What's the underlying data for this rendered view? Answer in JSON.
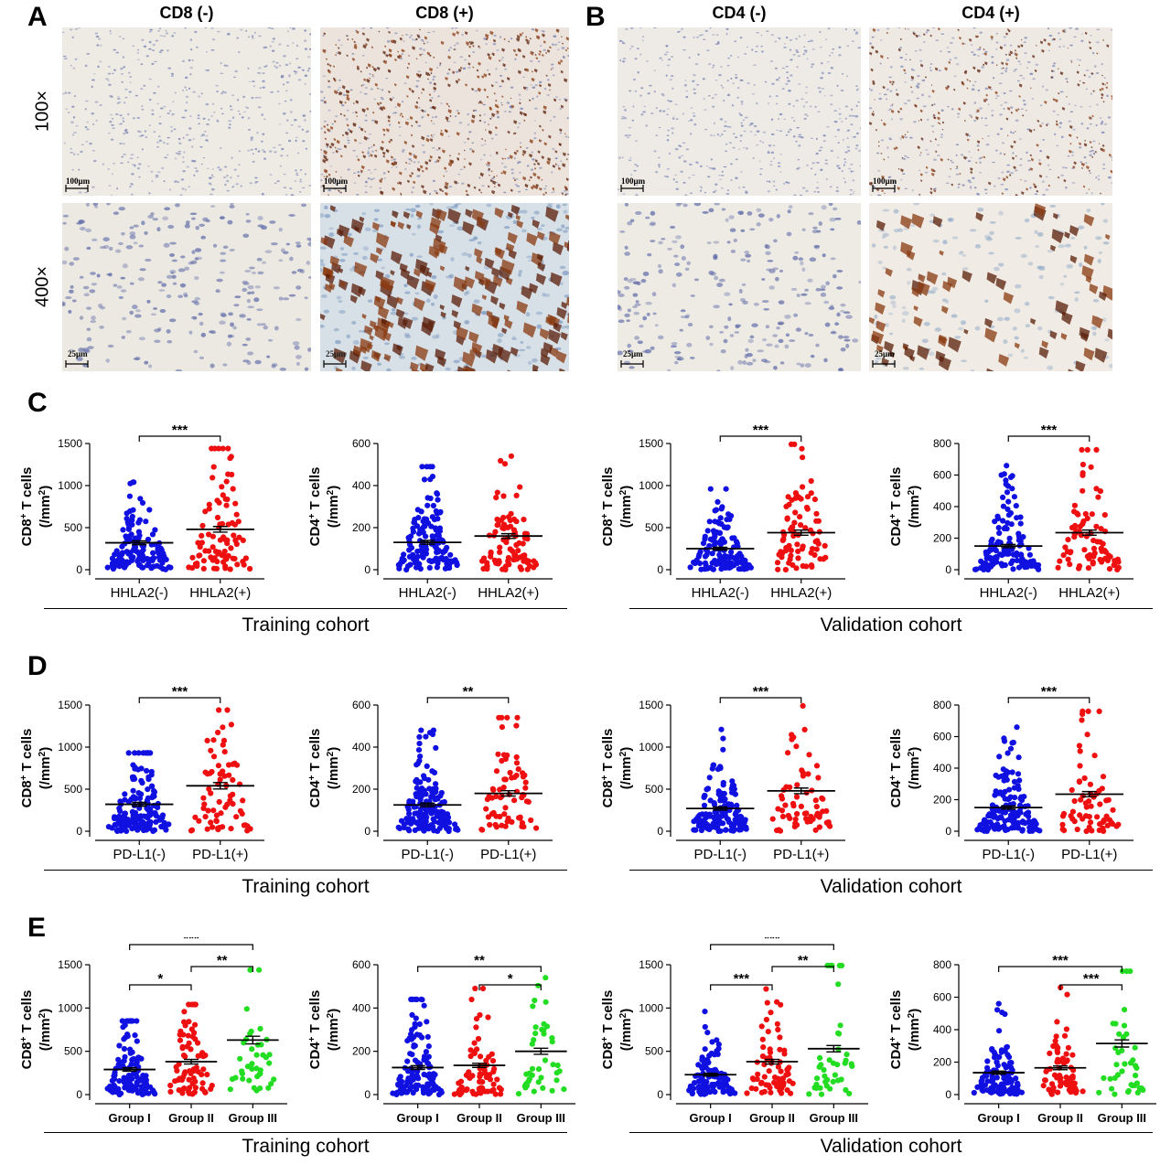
{
  "panels": {
    "A": "A",
    "B": "B",
    "C": "C",
    "D": "D",
    "E": "E"
  },
  "micrographs": {
    "col_headers": [
      "CD8 (-)",
      "CD8 (+)",
      "CD4 (-)",
      "CD4 (+)"
    ],
    "row_labels": [
      "100×",
      "400×"
    ],
    "scalebars": {
      "low": "100μm",
      "high": "25μm"
    }
  },
  "cohorts": {
    "training": "Training cohort",
    "validation": "Validation cohort"
  },
  "colors": {
    "blue": "#1010e0",
    "red": "#ee1010",
    "green": "#22dd22"
  },
  "chart_data": [
    {
      "id": "C1",
      "type": "scatter",
      "ylabel": "CD8+ T cells (/mm2)",
      "ylim": [
        0,
        1500
      ],
      "yticks": [
        0,
        500,
        1000,
        1500
      ],
      "categories": [
        "HHLA2(-)",
        "HHLA2(+)"
      ],
      "colors": [
        "blue",
        "red"
      ],
      "means": [
        320,
        480
      ],
      "n": [
        140,
        90
      ],
      "max": [
        1040,
        1440
      ],
      "sig": [
        {
          "from": 0,
          "to": 1,
          "label": "***",
          "level": 0
        }
      ]
    },
    {
      "id": "C2",
      "type": "scatter",
      "ylabel": "CD4+ T cells (/mm2)",
      "ylim": [
        0,
        600
      ],
      "yticks": [
        0,
        200,
        400,
        600
      ],
      "categories": [
        "HHLA2(-)",
        "HHLA2(+)"
      ],
      "colors": [
        "blue",
        "red"
      ],
      "means": [
        130,
        160
      ],
      "n": [
        140,
        90
      ],
      "max": [
        490,
        540
      ],
      "sig": []
    },
    {
      "id": "C3",
      "type": "scatter",
      "ylabel": "CD8+ T cells (/mm2)",
      "ylim": [
        0,
        1500
      ],
      "yticks": [
        0,
        500,
        1000,
        1500
      ],
      "categories": [
        "HHLA2(-)",
        "HHLA2(+)"
      ],
      "colors": [
        "blue",
        "red"
      ],
      "means": [
        250,
        440
      ],
      "n": [
        130,
        80
      ],
      "max": [
        960,
        1490
      ],
      "sig": [
        {
          "from": 0,
          "to": 1,
          "label": "***",
          "level": 0
        }
      ]
    },
    {
      "id": "C4",
      "type": "scatter",
      "ylabel": "CD4+ T cells (/mm2)",
      "ylim": [
        0,
        800
      ],
      "yticks": [
        0,
        200,
        400,
        600,
        800
      ],
      "categories": [
        "HHLA2(-)",
        "HHLA2(+)"
      ],
      "colors": [
        "blue",
        "red"
      ],
      "means": [
        150,
        235
      ],
      "n": [
        130,
        80
      ],
      "max": [
        660,
        760
      ],
      "sig": [
        {
          "from": 0,
          "to": 1,
          "label": "***",
          "level": 0
        }
      ]
    },
    {
      "id": "D1",
      "type": "scatter",
      "ylabel": "CD8+ T cells (/mm2)",
      "ylim": [
        0,
        1500
      ],
      "yticks": [
        0,
        500,
        1000,
        1500
      ],
      "categories": [
        "PD-L1(-)",
        "PD-L1(+)"
      ],
      "colors": [
        "blue",
        "red"
      ],
      "means": [
        320,
        540
      ],
      "n": [
        160,
        70
      ],
      "max": [
        930,
        1440
      ],
      "sig": [
        {
          "from": 0,
          "to": 1,
          "label": "***",
          "level": 0
        }
      ]
    },
    {
      "id": "D2",
      "type": "scatter",
      "ylabel": "CD4+ T cells (/mm2)",
      "ylim": [
        0,
        600
      ],
      "yticks": [
        0,
        200,
        400,
        600
      ],
      "categories": [
        "PD-L1(-)",
        "PD-L1(+)"
      ],
      "colors": [
        "blue",
        "red"
      ],
      "means": [
        125,
        180
      ],
      "n": [
        160,
        70
      ],
      "max": [
        480,
        540
      ],
      "sig": [
        {
          "from": 0,
          "to": 1,
          "label": "**",
          "level": 0
        }
      ]
    },
    {
      "id": "D3",
      "type": "scatter",
      "ylabel": "CD8+ T cells (/mm2)",
      "ylim": [
        0,
        1500
      ],
      "yticks": [
        0,
        500,
        1000,
        1500
      ],
      "categories": [
        "PD-L1(-)",
        "PD-L1(+)"
      ],
      "colors": [
        "blue",
        "red"
      ],
      "means": [
        270,
        480
      ],
      "n": [
        150,
        65
      ],
      "max": [
        1210,
        1490
      ],
      "sig": [
        {
          "from": 0,
          "to": 1,
          "label": "***",
          "level": 0
        }
      ]
    },
    {
      "id": "D4",
      "type": "scatter",
      "ylabel": "CD4+ T cells (/mm2)",
      "ylim": [
        0,
        800
      ],
      "yticks": [
        0,
        200,
        400,
        600,
        800
      ],
      "categories": [
        "PD-L1(-)",
        "PD-L1(+)"
      ],
      "colors": [
        "blue",
        "red"
      ],
      "means": [
        150,
        235
      ],
      "n": [
        150,
        65
      ],
      "max": [
        660,
        760
      ],
      "sig": [
        {
          "from": 0,
          "to": 1,
          "label": "***",
          "level": 0
        }
      ]
    },
    {
      "id": "E1",
      "type": "scatter",
      "ylabel": "CD8+ T cells (/mm2)",
      "ylim": [
        0,
        1500
      ],
      "yticks": [
        0,
        500,
        1000,
        1500
      ],
      "categories": [
        "Group I",
        "Group II",
        "Group III"
      ],
      "colors": [
        "blue",
        "red",
        "green"
      ],
      "means": [
        290,
        380,
        630
      ],
      "n": [
        120,
        75,
        40
      ],
      "max": [
        850,
        1040,
        1440
      ],
      "sig": [
        {
          "from": 0,
          "to": 1,
          "label": "*",
          "level": 0
        },
        {
          "from": 1,
          "to": 2,
          "label": "**",
          "level": 1
        },
        {
          "from": 0,
          "to": 2,
          "label": "***",
          "level": 2
        }
      ]
    },
    {
      "id": "E2",
      "type": "scatter",
      "ylabel": "CD4+ T cells (/mm2)",
      "ylim": [
        0,
        600
      ],
      "yticks": [
        0,
        200,
        400,
        600
      ],
      "categories": [
        "Group I",
        "Group II",
        "Group III"
      ],
      "colors": [
        "blue",
        "red",
        "green"
      ],
      "means": [
        125,
        135,
        200
      ],
      "n": [
        120,
        75,
        40
      ],
      "max": [
        440,
        490,
        540
      ],
      "sig": [
        {
          "from": 1,
          "to": 2,
          "label": "*",
          "level": 0
        },
        {
          "from": 0,
          "to": 2,
          "label": "**",
          "level": 1
        }
      ]
    },
    {
      "id": "E3",
      "type": "scatter",
      "ylabel": "CD8+ T cells (/mm2)",
      "ylim": [
        0,
        1500
      ],
      "yticks": [
        0,
        500,
        1000,
        1500
      ],
      "categories": [
        "Group I",
        "Group II",
        "Group III"
      ],
      "colors": [
        "blue",
        "red",
        "green"
      ],
      "means": [
        230,
        380,
        530
      ],
      "n": [
        110,
        70,
        40
      ],
      "max": [
        960,
        1220,
        1490
      ],
      "sig": [
        {
          "from": 0,
          "to": 1,
          "label": "***",
          "level": 0
        },
        {
          "from": 1,
          "to": 2,
          "label": "**",
          "level": 1
        },
        {
          "from": 0,
          "to": 2,
          "label": "***",
          "level": 2
        }
      ]
    },
    {
      "id": "E4",
      "type": "scatter",
      "ylabel": "CD4+ T cells (/mm2)",
      "ylim": [
        0,
        800
      ],
      "yticks": [
        0,
        200,
        400,
        600,
        800
      ],
      "categories": [
        "Group I",
        "Group II",
        "Group III"
      ],
      "colors": [
        "blue",
        "red",
        "green"
      ],
      "means": [
        135,
        165,
        315
      ],
      "n": [
        110,
        70,
        40
      ],
      "max": [
        560,
        660,
        760
      ],
      "sig": [
        {
          "from": 1,
          "to": 2,
          "label": "***",
          "level": 0
        },
        {
          "from": 0,
          "to": 2,
          "label": "***",
          "level": 1
        }
      ]
    }
  ]
}
